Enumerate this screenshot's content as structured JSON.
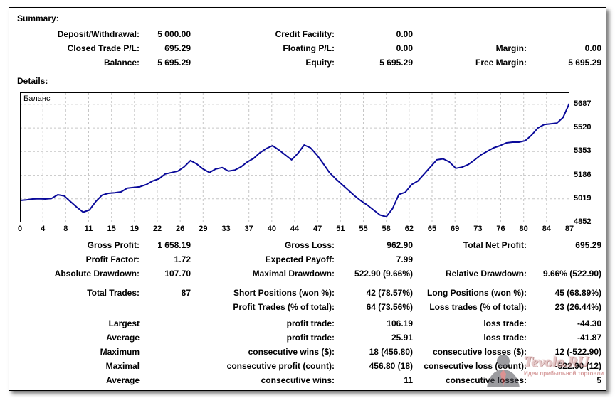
{
  "summary": {
    "title": "Summary:",
    "rows": [
      {
        "c1l": "Deposit/Withdrawal:",
        "c1v": "5 000.00",
        "c2l": "Credit Facility:",
        "c2v": "0.00",
        "c3l": "",
        "c3v": ""
      },
      {
        "c1l": "Closed Trade P/L:",
        "c1v": "695.29",
        "c2l": "Floating P/L:",
        "c2v": "0.00",
        "c3l": "Margin:",
        "c3v": "0.00"
      },
      {
        "c1l": "Balance:",
        "c1v": "5 695.29",
        "c2l": "Equity:",
        "c2v": "5 695.29",
        "c3l": "Free Margin:",
        "c3v": "5 695.29"
      }
    ]
  },
  "details": {
    "title": "Details:",
    "rows": [
      {
        "c1l": "Gross Profit:",
        "c1v": "1 658.19",
        "c2l": "Gross Loss:",
        "c2v": "962.90",
        "c3l": "Total Net Profit:",
        "c3v": "695.29"
      },
      {
        "c1l": "Profit Factor:",
        "c1v": "1.72",
        "c2l": "Expected Payoff:",
        "c2v": "7.99",
        "c3l": "",
        "c3v": ""
      },
      {
        "c1l": "Absolute Drawdown:",
        "c1v": "107.70",
        "c2l": "Maximal Drawdown:",
        "c2v": "522.90 (9.66%)",
        "c3l": "Relative Drawdown:",
        "c3v": "9.66% (522.90)"
      },
      {
        "c1l": "Total Trades:",
        "c1v": "87",
        "c2l": "Short Positions (won %):",
        "c2v": "42 (78.57%)",
        "c3l": "Long Positions (won %):",
        "c3v": "45 (68.89%)"
      },
      {
        "c1l": "",
        "c1v": "",
        "c2l": "Profit Trades (% of total):",
        "c2v": "64 (73.56%)",
        "c3l": "Loss trades (% of total):",
        "c3v": "23 (26.44%)"
      },
      {
        "c1l": "Largest",
        "c1v": "",
        "c2l": "profit trade:",
        "c2v": "106.19",
        "c3l": "loss trade:",
        "c3v": "-44.30"
      },
      {
        "c1l": "Average",
        "c1v": "",
        "c2l": "profit trade:",
        "c2v": "25.91",
        "c3l": "loss trade:",
        "c3v": "-41.87"
      },
      {
        "c1l": "Maximum",
        "c1v": "",
        "c2l": "consecutive wins ($):",
        "c2v": "18 (456.80)",
        "c3l": "consecutive losses ($):",
        "c3v": "12 (-522.90)"
      },
      {
        "c1l": "Maximal",
        "c1v": "",
        "c2l": "consecutive profit (count):",
        "c2v": "456.80 (18)",
        "c3l": "consecutive loss (count):",
        "c3v": "-522.90 (12)"
      },
      {
        "c1l": "Average",
        "c1v": "",
        "c2l": "consecutive wins:",
        "c2v": "11",
        "c3l": "consecutive losses:",
        "c3v": "5"
      }
    ]
  },
  "chart_data": {
    "type": "line",
    "title": "Баланс",
    "legend_position": "top-left",
    "grid": true,
    "line_color": "#0a0a9a",
    "xlim": [
      0,
      87
    ],
    "ylim": [
      4852,
      5772
    ],
    "x_ticks": [
      0,
      4,
      8,
      11,
      15,
      19,
      22,
      26,
      29,
      33,
      37,
      40,
      44,
      47,
      51,
      55,
      58,
      62,
      65,
      69,
      73,
      76,
      80,
      84,
      87
    ],
    "y_ticks": [
      5687,
      5520,
      5353,
      5186,
      5019,
      4852
    ],
    "series": [
      {
        "name": "Баланс",
        "values": [
          5008,
          5012,
          5018,
          5020,
          5018,
          5022,
          5048,
          5040,
          5000,
          4960,
          4925,
          4940,
          5000,
          5045,
          5058,
          5062,
          5068,
          5095,
          5100,
          5105,
          5120,
          5145,
          5160,
          5195,
          5205,
          5215,
          5245,
          5290,
          5265,
          5230,
          5205,
          5230,
          5240,
          5215,
          5222,
          5245,
          5280,
          5305,
          5345,
          5375,
          5395,
          5365,
          5330,
          5295,
          5340,
          5400,
          5380,
          5330,
          5270,
          5205,
          5160,
          5120,
          5080,
          5040,
          5005,
          4975,
          4940,
          4905,
          4892,
          4950,
          5050,
          5065,
          5120,
          5145,
          5195,
          5245,
          5295,
          5302,
          5280,
          5235,
          5243,
          5262,
          5295,
          5330,
          5355,
          5380,
          5395,
          5415,
          5420,
          5420,
          5430,
          5470,
          5520,
          5545,
          5550,
          5555,
          5595,
          5695
        ]
      }
    ]
  },
  "watermark": {
    "brand": "Tevola.RU",
    "tagline": "Идеи прибыльной торговли"
  }
}
